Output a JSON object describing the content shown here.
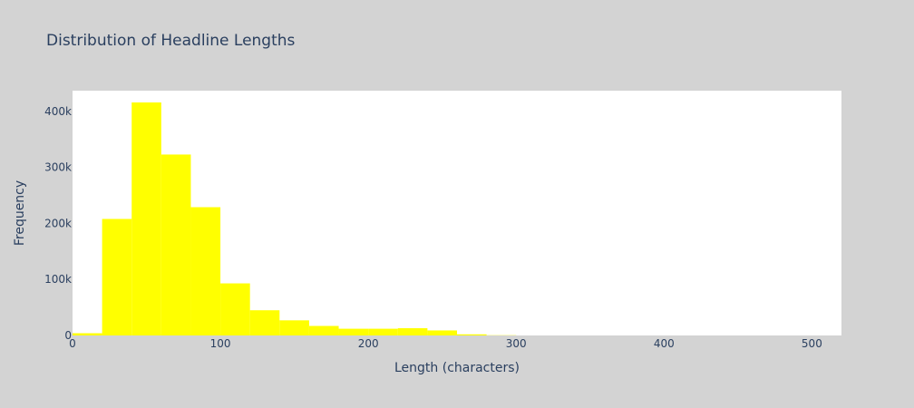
{
  "chart_data": {
    "type": "bar",
    "title": "Distribution of Headline Lengths",
    "xlabel": "Length (characters)",
    "ylabel": "Frequency",
    "xlim": [
      0,
      520
    ],
    "ylim": [
      0,
      437000
    ],
    "grid": false,
    "bar_color": "#ffff00",
    "plot_bg": "#ffffff",
    "paper_bg": "#d3d3d3",
    "text_color": "#2a3f5f",
    "x_ticks": [
      {
        "value": 0,
        "label": "0"
      },
      {
        "value": 100,
        "label": "100"
      },
      {
        "value": 200,
        "label": "200"
      },
      {
        "value": 300,
        "label": "300"
      },
      {
        "value": 400,
        "label": "400"
      },
      {
        "value": 500,
        "label": "500"
      }
    ],
    "y_ticks": [
      {
        "value": 0,
        "label": "0"
      },
      {
        "value": 100000,
        "label": "100k"
      },
      {
        "value": 200000,
        "label": "200k"
      },
      {
        "value": 300000,
        "label": "300k"
      },
      {
        "value": 400000,
        "label": "400k"
      }
    ],
    "bins": [
      {
        "x0": 0,
        "x1": 20,
        "value": 4000
      },
      {
        "x0": 20,
        "x1": 40,
        "value": 208000
      },
      {
        "x0": 40,
        "x1": 60,
        "value": 416000
      },
      {
        "x0": 60,
        "x1": 80,
        "value": 323000
      },
      {
        "x0": 80,
        "x1": 100,
        "value": 229000
      },
      {
        "x0": 100,
        "x1": 120,
        "value": 93000
      },
      {
        "x0": 120,
        "x1": 140,
        "value": 45000
      },
      {
        "x0": 140,
        "x1": 160,
        "value": 27000
      },
      {
        "x0": 160,
        "x1": 180,
        "value": 17000
      },
      {
        "x0": 180,
        "x1": 200,
        "value": 12000
      },
      {
        "x0": 200,
        "x1": 220,
        "value": 12000
      },
      {
        "x0": 220,
        "x1": 240,
        "value": 13000
      },
      {
        "x0": 240,
        "x1": 260,
        "value": 9000
      },
      {
        "x0": 260,
        "x1": 280,
        "value": 2000
      },
      {
        "x0": 280,
        "x1": 300,
        "value": 400
      }
    ]
  }
}
